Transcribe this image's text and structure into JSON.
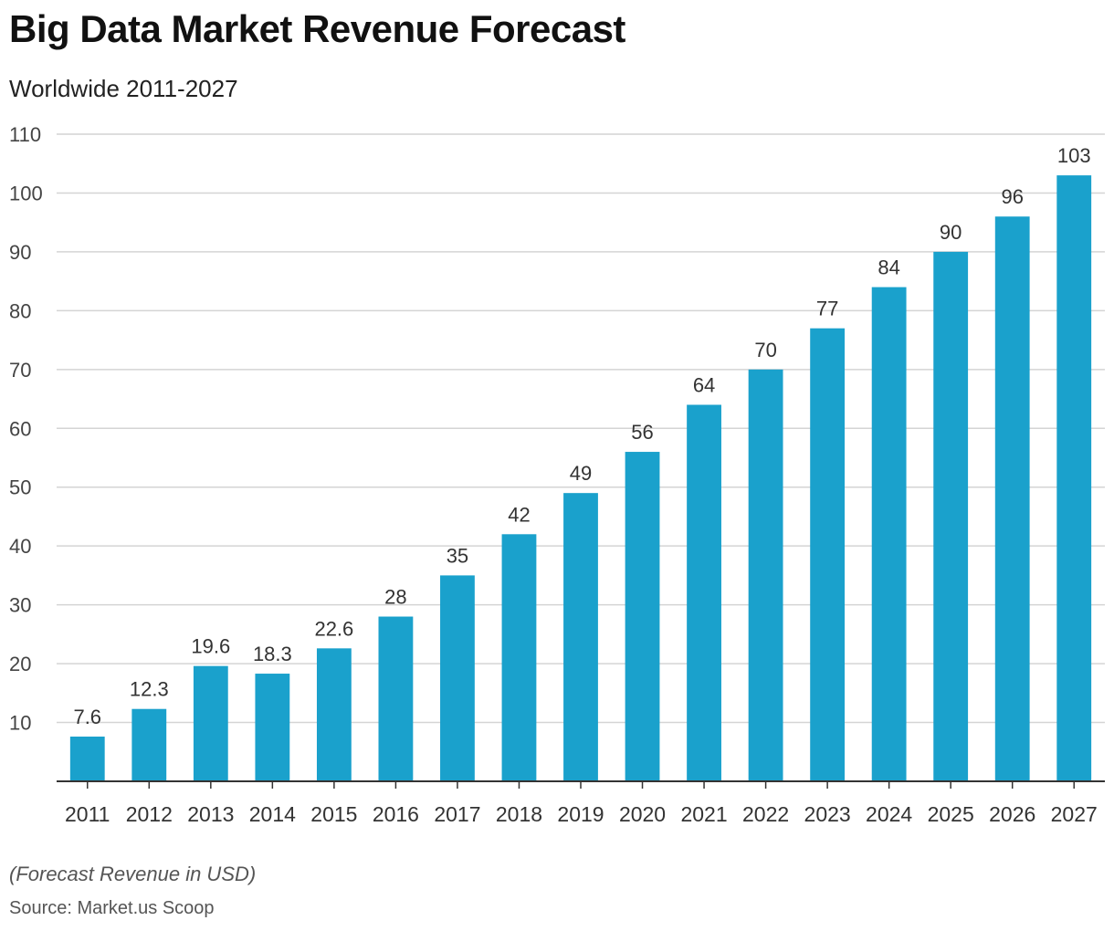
{
  "header": {
    "title": "Big Data Market Revenue Forecast",
    "subtitle": "Worldwide 2011-2027"
  },
  "footer": {
    "note": "(Forecast Revenue in USD)",
    "source": "Source: Market.us Scoop"
  },
  "colors": {
    "bar": "#1aa1cc",
    "grid": "#d4d4d4",
    "axis": "#333333"
  },
  "chart_data": {
    "type": "bar",
    "title": "Big Data Market Revenue Forecast",
    "subtitle": "Worldwide 2011-2027",
    "categories": [
      "2011",
      "2012",
      "2013",
      "2014",
      "2015",
      "2016",
      "2017",
      "2018",
      "2019",
      "2020",
      "2021",
      "2022",
      "2023",
      "2024",
      "2025",
      "2026",
      "2027"
    ],
    "values": [
      7.6,
      12.3,
      19.6,
      18.3,
      22.6,
      28,
      35,
      42,
      49,
      56,
      64,
      70,
      77,
      84,
      90,
      96,
      103
    ],
    "data_labels": [
      "7.6",
      "12.3",
      "19.6",
      "18.3",
      "22.6",
      "28",
      "35",
      "42",
      "49",
      "56",
      "64",
      "70",
      "77",
      "84",
      "90",
      "96",
      "103"
    ],
    "ylim": [
      0,
      110
    ],
    "yticks": [
      10,
      20,
      30,
      40,
      50,
      60,
      70,
      80,
      90,
      100,
      110
    ],
    "xlabel": "",
    "ylabel": "",
    "grid": true,
    "legend": "none"
  }
}
